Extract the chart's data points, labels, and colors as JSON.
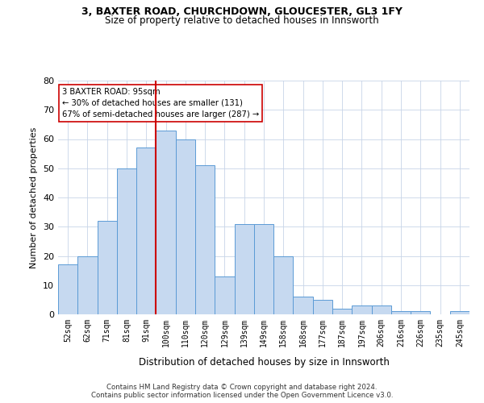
{
  "title1": "3, BAXTER ROAD, CHURCHDOWN, GLOUCESTER, GL3 1FY",
  "title2": "Size of property relative to detached houses in Innsworth",
  "xlabel": "Distribution of detached houses by size in Innsworth",
  "ylabel": "Number of detached properties",
  "categories": [
    "52sqm",
    "62sqm",
    "71sqm",
    "81sqm",
    "91sqm",
    "100sqm",
    "110sqm",
    "120sqm",
    "129sqm",
    "139sqm",
    "149sqm",
    "158sqm",
    "168sqm",
    "177sqm",
    "187sqm",
    "197sqm",
    "206sqm",
    "216sqm",
    "226sqm",
    "235sqm",
    "245sqm"
  ],
  "values": [
    17,
    20,
    32,
    50,
    57,
    63,
    60,
    51,
    13,
    31,
    31,
    20,
    6,
    5,
    2,
    3,
    3,
    1,
    1,
    0,
    1
  ],
  "bar_color": "#c6d9f0",
  "bar_edge_color": "#5b9bd5",
  "grid_color": "#c8d4e8",
  "vline_x": 4.5,
  "vline_color": "#cc0000",
  "annotation_line1": "3 BAXTER ROAD: 95sqm",
  "annotation_line2": "← 30% of detached houses are smaller (131)",
  "annotation_line3": "67% of semi-detached houses are larger (287) →",
  "annotation_box_color": "#ffffff",
  "annotation_box_edge": "#cc0000",
  "ylim": [
    0,
    80
  ],
  "yticks": [
    0,
    10,
    20,
    30,
    40,
    50,
    60,
    70,
    80
  ],
  "footnote1": "Contains HM Land Registry data © Crown copyright and database right 2024.",
  "footnote2": "Contains public sector information licensed under the Open Government Licence v3.0.",
  "bg_color": "#ffffff"
}
